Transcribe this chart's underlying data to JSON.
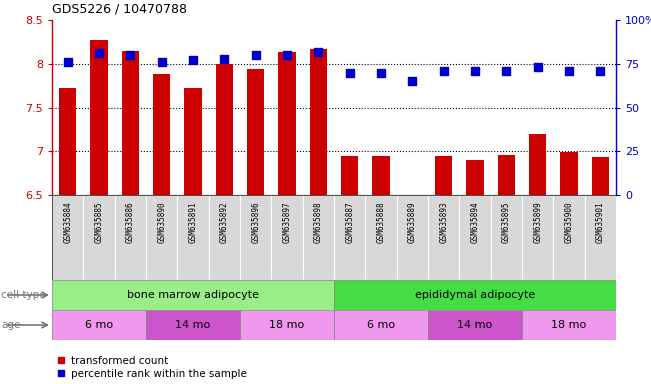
{
  "title": "GDS5226 / 10470788",
  "samples": [
    "GSM635884",
    "GSM635885",
    "GSM635886",
    "GSM635890",
    "GSM635891",
    "GSM635892",
    "GSM635896",
    "GSM635897",
    "GSM635898",
    "GSM635887",
    "GSM635888",
    "GSM635889",
    "GSM635893",
    "GSM635894",
    "GSM635895",
    "GSM635899",
    "GSM635900",
    "GSM635901"
  ],
  "transformed_count": [
    7.72,
    8.27,
    8.15,
    7.88,
    7.72,
    8.0,
    7.94,
    8.13,
    8.17,
    6.95,
    6.95,
    6.5,
    6.95,
    6.9,
    6.96,
    7.2,
    6.99,
    6.93
  ],
  "percentile_rank": [
    76,
    81,
    80,
    76,
    77,
    78,
    80,
    80,
    82,
    70,
    70,
    65,
    71,
    71,
    71,
    73,
    71,
    71
  ],
  "ylim_left": [
    6.5,
    8.5
  ],
  "ylim_right": [
    0,
    100
  ],
  "yticks_left": [
    6.5,
    7.0,
    7.5,
    8.0,
    8.5
  ],
  "ytick_labels_left": [
    "6.5",
    "7",
    "7.5",
    "8",
    "8.5"
  ],
  "yticks_right": [
    0,
    25,
    50,
    75,
    100
  ],
  "ytick_labels_right": [
    "0",
    "25",
    "50",
    "75",
    "100%"
  ],
  "bar_color": "#cc0000",
  "dot_color": "#0000cc",
  "cell_types": [
    {
      "label": "bone marrow adipocyte",
      "start": 0,
      "end": 9,
      "color": "#99ee88"
    },
    {
      "label": "epididymal adipocyte",
      "start": 9,
      "end": 18,
      "color": "#44dd44"
    }
  ],
  "age_groups": [
    {
      "label": "6 mo",
      "start": 0,
      "end": 3,
      "color": "#ee99ee"
    },
    {
      "label": "14 mo",
      "start": 3,
      "end": 6,
      "color": "#cc55cc"
    },
    {
      "label": "18 mo",
      "start": 6,
      "end": 9,
      "color": "#ee99ee"
    },
    {
      "label": "6 mo",
      "start": 9,
      "end": 12,
      "color": "#ee99ee"
    },
    {
      "label": "14 mo",
      "start": 12,
      "end": 15,
      "color": "#cc55cc"
    },
    {
      "label": "18 mo",
      "start": 15,
      "end": 18,
      "color": "#ee99ee"
    }
  ],
  "legend_transformed": "transformed count",
  "legend_percentile": "percentile rank within the sample",
  "cell_type_label": "cell type",
  "age_label": "age",
  "bar_bottom": 6.5,
  "dot_size": 28,
  "background_color": "#ffffff"
}
